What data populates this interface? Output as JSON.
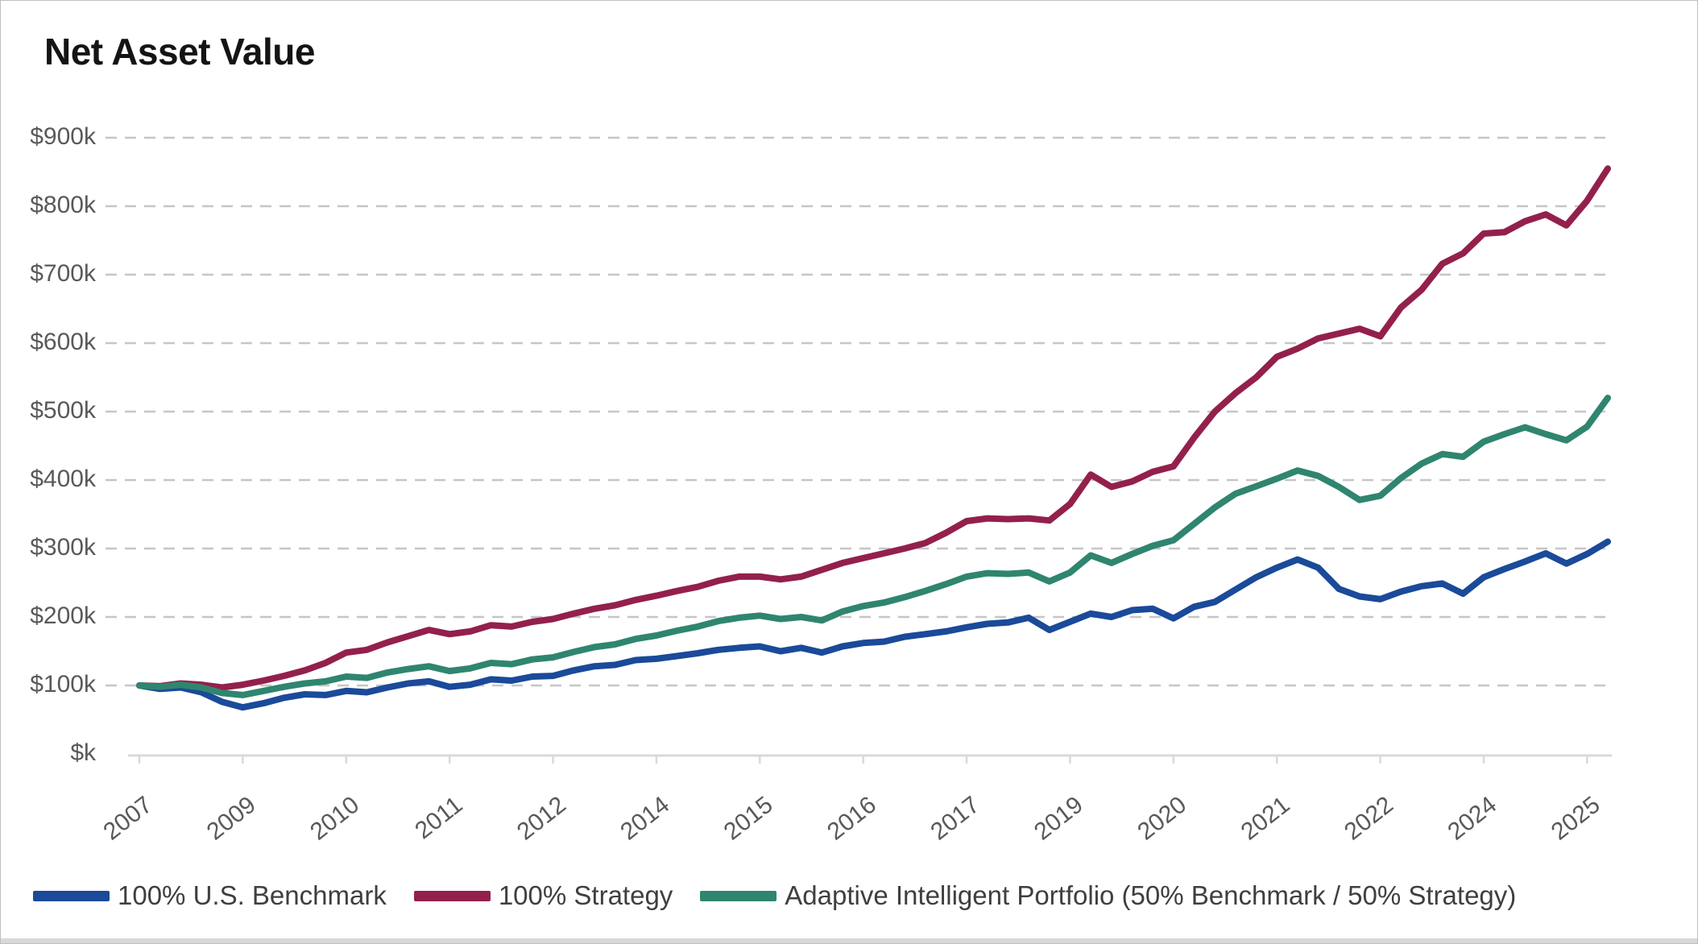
{
  "chart_data": {
    "type": "line",
    "title": "Net Asset Value",
    "ylabel": "",
    "xlabel": "",
    "grid": "horizontal-dashed",
    "legend_position": "bottom",
    "ylim": [
      0,
      900
    ],
    "y_ticks": [
      {
        "label": "$k",
        "value": 0
      },
      {
        "label": "$100k",
        "value": 100
      },
      {
        "label": "$200k",
        "value": 200
      },
      {
        "label": "$300k",
        "value": 300
      },
      {
        "label": "$400k",
        "value": 400
      },
      {
        "label": "$500k",
        "value": 500
      },
      {
        "label": "$600k",
        "value": 600
      },
      {
        "label": "$700k",
        "value": 700
      },
      {
        "label": "$800k",
        "value": 800
      },
      {
        "label": "$900k",
        "value": 900
      }
    ],
    "x_ticks": [
      {
        "label": "2007",
        "month": 0
      },
      {
        "label": "2009",
        "month": 15
      },
      {
        "label": "2010",
        "month": 30
      },
      {
        "label": "2011",
        "month": 45
      },
      {
        "label": "2012",
        "month": 60
      },
      {
        "label": "2014",
        "month": 75
      },
      {
        "label": "2015",
        "month": 90
      },
      {
        "label": "2016",
        "month": 105
      },
      {
        "label": "2017",
        "month": 120
      },
      {
        "label": "2019",
        "month": 135
      },
      {
        "label": "2020",
        "month": 150
      },
      {
        "label": "2021",
        "month": 165
      },
      {
        "label": "2022",
        "month": 180
      },
      {
        "label": "2024",
        "month": 195
      },
      {
        "label": "2025",
        "month": 210
      }
    ],
    "x_months_total": 213,
    "x": [
      "2007-11",
      "2008-02",
      "2008-05",
      "2008-08",
      "2008-11",
      "2009-02",
      "2009-05",
      "2009-08",
      "2009-11",
      "2010-02",
      "2010-05",
      "2010-08",
      "2010-11",
      "2011-02",
      "2011-05",
      "2011-08",
      "2011-11",
      "2012-02",
      "2012-05",
      "2012-08",
      "2012-11",
      "2013-02",
      "2013-05",
      "2013-08",
      "2013-11",
      "2014-02",
      "2014-05",
      "2014-08",
      "2014-11",
      "2015-02",
      "2015-05",
      "2015-08",
      "2015-11",
      "2016-02",
      "2016-05",
      "2016-08",
      "2016-11",
      "2017-02",
      "2017-05",
      "2017-08",
      "2017-11",
      "2018-02",
      "2018-05",
      "2018-08",
      "2018-11",
      "2019-02",
      "2019-05",
      "2019-08",
      "2019-11",
      "2020-02",
      "2020-05",
      "2020-08",
      "2020-11",
      "2021-02",
      "2021-05",
      "2021-08",
      "2021-11",
      "2022-02",
      "2022-05",
      "2022-08",
      "2022-11",
      "2023-02",
      "2023-05",
      "2023-08",
      "2023-11",
      "2024-02",
      "2024-05",
      "2024-08",
      "2024-11",
      "2025-02",
      "2025-05",
      "2025-08"
    ],
    "series": [
      {
        "name": "100% U.S. Benchmark",
        "color": "#1A4A99",
        "values": [
          100,
          95,
          97,
          90,
          76,
          68,
          74,
          82,
          87,
          86,
          92,
          90,
          97,
          103,
          106,
          98,
          101,
          109,
          107,
          113,
          114,
          122,
          128,
          130,
          137,
          139,
          143,
          147,
          152,
          155,
          157,
          150,
          155,
          148,
          157,
          162,
          164,
          171,
          175,
          179,
          185,
          190,
          192,
          199,
          181,
          193,
          205,
          200,
          210,
          212,
          198,
          215,
          222,
          240,
          258,
          272,
          284,
          272,
          241,
          230,
          226,
          237,
          245,
          249,
          234,
          258,
          270,
          281,
          293,
          278,
          292,
          310
        ]
      },
      {
        "name": "100% Strategy",
        "color": "#93204C",
        "values": [
          100,
          99,
          103,
          101,
          97,
          101,
          107,
          114,
          122,
          133,
          148,
          152,
          163,
          172,
          181,
          175,
          179,
          188,
          186,
          193,
          197,
          205,
          212,
          217,
          225,
          231,
          238,
          244,
          253,
          259,
          259,
          255,
          259,
          269,
          279,
          286,
          293,
          300,
          308,
          323,
          340,
          344,
          343,
          344,
          341,
          365,
          408,
          390,
          398,
          412,
          420,
          462,
          500,
          527,
          550,
          580,
          592,
          607,
          614,
          621,
          610,
          652,
          678,
          716,
          731,
          760,
          762,
          778,
          788,
          772,
          808,
          855
        ]
      },
      {
        "name": "Adaptive Intelligent Portfolio (50% Benchmark / 50% Strategy)",
        "color": "#2F8570",
        "values": [
          100,
          98,
          101,
          97,
          89,
          86,
          92,
          98,
          103,
          106,
          113,
          111,
          119,
          124,
          128,
          121,
          125,
          133,
          131,
          138,
          141,
          149,
          156,
          160,
          168,
          173,
          180,
          186,
          194,
          199,
          202,
          197,
          200,
          195,
          208,
          216,
          221,
          229,
          238,
          248,
          259,
          264,
          263,
          265,
          252,
          265,
          290,
          279,
          292,
          304,
          312,
          336,
          360,
          380,
          391,
          402,
          414,
          406,
          390,
          371,
          377,
          403,
          424,
          438,
          434,
          456,
          467,
          477,
          467,
          458,
          478,
          520
        ]
      }
    ],
    "colors": {
      "benchmark_line": "#1A4A99",
      "strategy_line": "#93204C",
      "adaptive_line": "#2F8570",
      "gridline": "#C6C6C6",
      "axis_line": "#D9D9D9",
      "axis_text": "#595959",
      "legend_text": "#3F3F3F",
      "title_text": "#141414"
    }
  }
}
